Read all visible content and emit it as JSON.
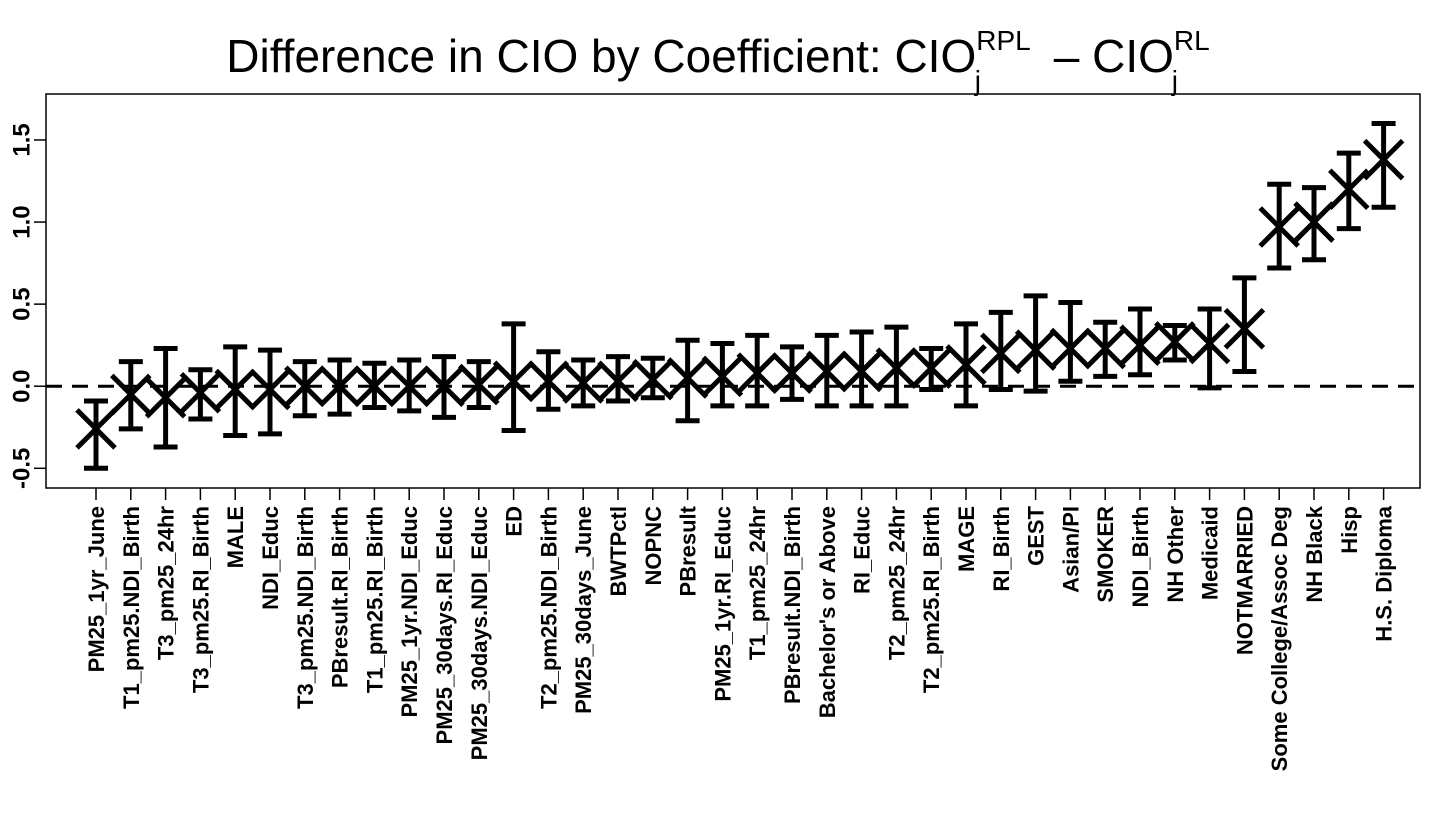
{
  "chart_data": {
    "type": "scatter",
    "title": {
      "main": "Difference in CIO by Coefficient: CIO",
      "sup1": "RPL",
      "sub1": "j",
      "minus": " – CIO",
      "sup2": "RL",
      "sub2": "j"
    },
    "xlabel": "",
    "ylabel": "",
    "ylim": [
      -0.62,
      1.78
    ],
    "yticks": [
      -0.5,
      0.0,
      0.5,
      1.0,
      1.5
    ],
    "ytick_labels": [
      "-0.5",
      "0.0",
      "0.5",
      "1.0",
      "1.5"
    ],
    "reference_line": 0,
    "grid": false,
    "legend": "none",
    "marker": "x",
    "color": "#000000",
    "categories": [
      "PM25_1yr_June",
      "T1_pm25.NDI_Birth",
      "T3_pm25_24hr",
      "T3_pm25.RI_Birth",
      "MALE",
      "NDI_Educ",
      "T3_pm25.NDI_Birth",
      "PBresult.RI_Birth",
      "T1_pm25.RI_Birth",
      "PM25_1yr.NDI_Educ",
      "PM25_30days.RI_Educ",
      "PM25_30days.NDI_Educ",
      "ED",
      "T2_pm25.NDI_Birth",
      "PM25_30days_June",
      "BWTPctl",
      "NOPNC",
      "PBresult",
      "PM25_1yr.RI_Educ",
      "T1_pm25_24hr",
      "PBresult.NDI_Birth",
      "Bachelor's or Above",
      "RI_Educ",
      "T2_pm25_24hr",
      "T2_pm25.RI_Birth",
      "MAGE",
      "RI_Birth",
      "GEST",
      "Asian/PI",
      "SMOKER",
      "NDI_Birth",
      "NH Other",
      "Medicaid",
      "NOTMARRIED",
      "Some College/Assoc Deg",
      "NH Black",
      "Hisp",
      "H.S. Diploma"
    ],
    "estimates": [
      -0.26,
      -0.05,
      -0.07,
      -0.04,
      -0.02,
      -0.02,
      0.0,
      0.0,
      0.0,
      0.0,
      0.0,
      0.01,
      0.03,
      0.03,
      0.02,
      0.03,
      0.04,
      0.05,
      0.06,
      0.08,
      0.08,
      0.09,
      0.09,
      0.11,
      0.11,
      0.13,
      0.2,
      0.22,
      0.23,
      0.23,
      0.25,
      0.27,
      0.26,
      0.35,
      0.97,
      1.0,
      1.2,
      1.38
    ],
    "lower": [
      -0.5,
      -0.26,
      -0.37,
      -0.2,
      -0.3,
      -0.29,
      -0.18,
      -0.17,
      -0.13,
      -0.15,
      -0.19,
      -0.13,
      -0.27,
      -0.14,
      -0.12,
      -0.09,
      -0.07,
      -0.21,
      -0.12,
      -0.12,
      -0.08,
      -0.12,
      -0.12,
      -0.12,
      -0.02,
      -0.12,
      -0.02,
      -0.03,
      0.03,
      0.06,
      0.07,
      0.16,
      -0.01,
      0.09,
      0.72,
      0.77,
      0.96,
      1.09
    ],
    "upper": [
      -0.09,
      0.15,
      0.23,
      0.1,
      0.24,
      0.22,
      0.15,
      0.16,
      0.14,
      0.16,
      0.18,
      0.15,
      0.38,
      0.21,
      0.16,
      0.18,
      0.17,
      0.28,
      0.26,
      0.31,
      0.24,
      0.31,
      0.33,
      0.36,
      0.23,
      0.38,
      0.45,
      0.55,
      0.51,
      0.39,
      0.47,
      0.37,
      0.47,
      0.66,
      1.23,
      1.21,
      1.42,
      1.6
    ]
  }
}
